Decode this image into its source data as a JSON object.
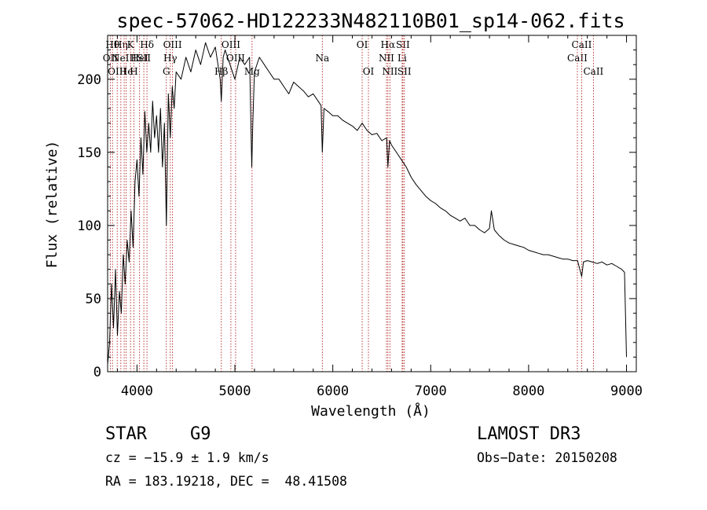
{
  "chart_data": {
    "type": "line",
    "title": "spec-57062-HD122233N482110B01_sp14-062.fits",
    "xlabel": "Wavelength (Å)",
    "ylabel": "Flux (relative)",
    "xlim": [
      3700,
      9100
    ],
    "ylim": [
      0,
      230
    ],
    "xticks": [
      4000,
      5000,
      6000,
      7000,
      8000,
      9000
    ],
    "yticks": [
      0,
      50,
      100,
      150,
      200
    ],
    "grid": false,
    "series": [
      {
        "name": "spectrum",
        "x": [
          3700,
          3720,
          3740,
          3760,
          3780,
          3800,
          3820,
          3840,
          3860,
          3880,
          3900,
          3920,
          3940,
          3960,
          3980,
          4000,
          4020,
          4040,
          4060,
          4080,
          4100,
          4120,
          4140,
          4160,
          4180,
          4200,
          4220,
          4240,
          4260,
          4280,
          4300,
          4320,
          4340,
          4360,
          4380,
          4400,
          4450,
          4500,
          4550,
          4600,
          4650,
          4700,
          4750,
          4800,
          4850,
          4861,
          4880,
          4900,
          4950,
          5000,
          5050,
          5100,
          5150,
          5172,
          5183,
          5200,
          5250,
          5300,
          5350,
          5400,
          5450,
          5500,
          5550,
          5600,
          5650,
          5700,
          5750,
          5800,
          5850,
          5880,
          5893,
          5910,
          5950,
          6000,
          6050,
          6100,
          6150,
          6200,
          6250,
          6300,
          6350,
          6400,
          6450,
          6500,
          6550,
          6563,
          6580,
          6600,
          6650,
          6700,
          6750,
          6800,
          6850,
          6900,
          6950,
          7000,
          7050,
          7100,
          7150,
          7200,
          7250,
          7300,
          7350,
          7400,
          7450,
          7500,
          7550,
          7600,
          7620,
          7650,
          7700,
          7750,
          7800,
          7850,
          7900,
          7950,
          8000,
          8050,
          8100,
          8150,
          8200,
          8250,
          8300,
          8350,
          8400,
          8450,
          8500,
          8542,
          8560,
          8600,
          8650,
          8700,
          8750,
          8800,
          8850,
          8900,
          8950,
          8980,
          9000
        ],
        "y": [
          5,
          20,
          60,
          30,
          70,
          25,
          55,
          40,
          80,
          60,
          90,
          75,
          110,
          85,
          130,
          145,
          120,
          160,
          135,
          178,
          150,
          170,
          150,
          185,
          160,
          175,
          150,
          180,
          140,
          170,
          100,
          190,
          160,
          195,
          180,
          205,
          200,
          215,
          205,
          220,
          210,
          225,
          215,
          222,
          200,
          185,
          215,
          220,
          210,
          200,
          215,
          210,
          215,
          140,
          170,
          205,
          215,
          210,
          205,
          200,
          200,
          195,
          190,
          198,
          195,
          192,
          188,
          190,
          185,
          182,
          150,
          180,
          178,
          175,
          175,
          172,
          170,
          168,
          165,
          170,
          165,
          162,
          163,
          158,
          160,
          140,
          158,
          155,
          150,
          145,
          140,
          133,
          128,
          124,
          120,
          117,
          115,
          112,
          110,
          107,
          105,
          103,
          105,
          100,
          100,
          97,
          95,
          98,
          110,
          97,
          93,
          90,
          88,
          87,
          86,
          85,
          83,
          82,
          81,
          80,
          80,
          79,
          78,
          77,
          77,
          76,
          76,
          65,
          75,
          76,
          75,
          74,
          75,
          73,
          74,
          72,
          70,
          68,
          10
        ]
      }
    ],
    "lines": [
      {
        "w": 3727,
        "label": "OII",
        "row": 1
      },
      {
        "w": 3750,
        "label": "Hθ",
        "row": 0
      },
      {
        "w": 3798,
        "label": "OIII",
        "row": 2
      },
      {
        "w": 3835,
        "label": "Hη",
        "row": 0
      },
      {
        "w": 3869,
        "label": "NeIII",
        "row": 1
      },
      {
        "w": 3889,
        "label": "He",
        "row": 2
      },
      {
        "w": 3934,
        "label": "K",
        "row": 0
      },
      {
        "w": 3969,
        "label": "H",
        "row": 2
      },
      {
        "w": 4026,
        "label": "HeI",
        "row": 1
      },
      {
        "w": 4070,
        "label": "SII",
        "row": 1
      },
      {
        "w": 4102,
        "label": "Hδ",
        "row": 0
      },
      {
        "w": 4300,
        "label": "G",
        "row": 2
      },
      {
        "w": 4340,
        "label": "Hγ",
        "row": 1
      },
      {
        "w": 4363,
        "label": "OIII",
        "row": 0
      },
      {
        "w": 4861,
        "label": "Hβ",
        "row": 2
      },
      {
        "w": 4959,
        "label": "OIII",
        "row": 0
      },
      {
        "w": 5007,
        "label": "OIII",
        "row": 1
      },
      {
        "w": 5175,
        "label": "Mg",
        "row": 2
      },
      {
        "w": 5893,
        "label": "Na",
        "row": 1
      },
      {
        "w": 6300,
        "label": "OI",
        "row": 0
      },
      {
        "w": 6364,
        "label": "OI",
        "row": 2
      },
      {
        "w": 6548,
        "label": "NII",
        "row": 1
      },
      {
        "w": 6563,
        "label": "Hα",
        "row": 0
      },
      {
        "w": 6583,
        "label": "NII",
        "row": 2
      },
      {
        "w": 6708,
        "label": "Li",
        "row": 1
      },
      {
        "w": 6716,
        "label": "SII",
        "row": 0
      },
      {
        "w": 6731,
        "label": "SII",
        "row": 2
      },
      {
        "w": 8498,
        "label": "CaII",
        "row": 1
      },
      {
        "w": 8542,
        "label": "CaII",
        "row": 0
      },
      {
        "w": 8662,
        "label": "CaII",
        "row": 2
      }
    ]
  },
  "info": {
    "object_class": "STAR",
    "subclass": "G9",
    "survey": "LAMOST DR3",
    "cz": "cz = −15.9 ± 1.9 km/s",
    "obs_date": "Obs−Date: 20150208",
    "radec": "RA = 183.19218, DEC =  48.41508"
  },
  "colors": {
    "line_marker": "#b22222",
    "spectrum": "#000000",
    "axis": "#000000"
  }
}
